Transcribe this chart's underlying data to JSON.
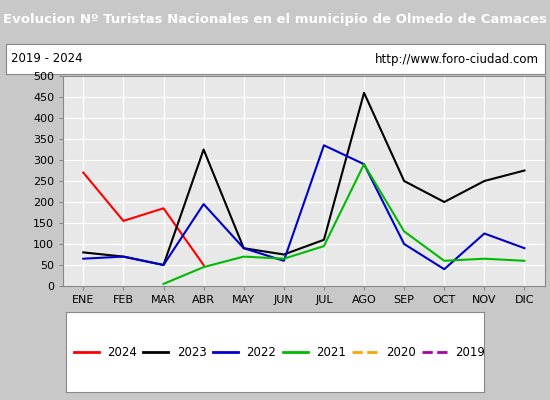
{
  "title": "Evolucion Nº Turistas Nacionales en el municipio de Olmedo de Camaces",
  "title_bg": "#4a86c8",
  "subtitle_left": "2019 - 2024",
  "subtitle_right": "http://www.foro-ciudad.com",
  "months": [
    "ENE",
    "FEB",
    "MAR",
    "ABR",
    "MAY",
    "JUN",
    "JUL",
    "AGO",
    "SEP",
    "OCT",
    "NOV",
    "DIC"
  ],
  "ylim": [
    0,
    500
  ],
  "yticks": [
    0,
    50,
    100,
    150,
    200,
    250,
    300,
    350,
    400,
    450,
    500
  ],
  "series": {
    "2024": {
      "color": "#ff0000",
      "ls": "-",
      "lw": 1.5,
      "data": [
        270,
        155,
        185,
        50,
        null,
        null,
        null,
        null,
        null,
        null,
        null,
        null
      ]
    },
    "2023": {
      "color": "#000000",
      "ls": "-",
      "lw": 1.5,
      "data": [
        80,
        70,
        50,
        325,
        90,
        75,
        110,
        460,
        250,
        200,
        250,
        275
      ]
    },
    "2022": {
      "color": "#0000cc",
      "ls": "-",
      "lw": 1.5,
      "data": [
        65,
        70,
        50,
        195,
        90,
        60,
        335,
        290,
        100,
        40,
        125,
        90
      ]
    },
    "2021": {
      "color": "#00bb00",
      "ls": "-",
      "lw": 1.5,
      "data": [
        null,
        null,
        5,
        45,
        70,
        65,
        95,
        290,
        130,
        60,
        65,
        60
      ]
    },
    "2020": {
      "color": "#ffa500",
      "ls": "--",
      "lw": 1.5,
      "data": [
        null,
        null,
        null,
        null,
        null,
        null,
        null,
        null,
        null,
        null,
        null,
        null
      ]
    },
    "2019": {
      "color": "#aa00aa",
      "ls": "--",
      "lw": 1.5,
      "data": [
        null,
        null,
        null,
        null,
        null,
        null,
        null,
        null,
        null,
        null,
        null,
        null
      ]
    }
  },
  "legend_order": [
    "2024",
    "2023",
    "2022",
    "2021",
    "2020",
    "2019"
  ],
  "outer_bg": "#c8c8c8",
  "plot_bg": "#e8e8e8",
  "grid_color": "#ffffff"
}
